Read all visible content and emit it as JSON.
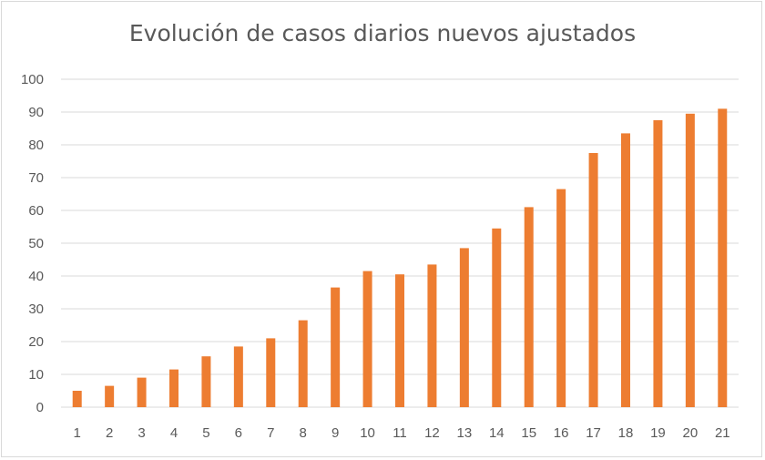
{
  "chart_data": {
    "type": "bar",
    "title": "Evolución de casos diarios nuevos ajustados",
    "xlabel": "",
    "ylabel": "",
    "categories": [
      "1",
      "2",
      "3",
      "4",
      "5",
      "6",
      "7",
      "8",
      "9",
      "10",
      "11",
      "12",
      "13",
      "14",
      "15",
      "16",
      "17",
      "18",
      "19",
      "20",
      "21"
    ],
    "values": [
      5,
      6.5,
      9,
      11.5,
      15.5,
      18.5,
      21,
      26.5,
      36.5,
      41.5,
      40.5,
      43.5,
      48.5,
      54.5,
      61,
      66.5,
      77.5,
      83.5,
      87.5,
      89.5,
      91
    ],
    "ylim": [
      0,
      100
    ],
    "yticks": [
      "0",
      "10",
      "20",
      "30",
      "40",
      "50",
      "60",
      "70",
      "80",
      "90",
      "100"
    ],
    "grid": true,
    "legend": "none",
    "colors": {
      "bar": "#ed7d31",
      "grid": "#d9d9d9",
      "text": "#595959"
    }
  }
}
